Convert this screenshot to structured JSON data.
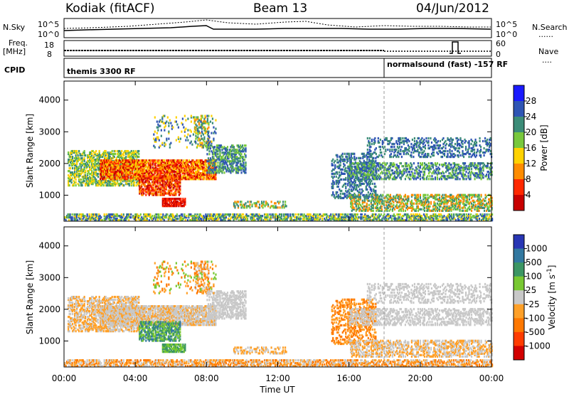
{
  "header": {
    "station": "Kodiak (fitACF)",
    "beam": "Beam 13",
    "date": "04/Jun/2012"
  },
  "side_labels": {
    "nsky": "N.Sky",
    "freq": "Freq.",
    "freq_unit": "[MHz]",
    "cpid": "CPID",
    "nsearch": "N.Search",
    "nave": "Nave",
    "dots": "......",
    "dots_short": "...."
  },
  "top_panel": {
    "left_ticks": [
      "10^5",
      "10^0"
    ],
    "right_ticks": [
      "10^5",
      "10^0"
    ]
  },
  "freq_panel": {
    "left_ticks": [
      "18",
      "8"
    ],
    "right_ticks": [
      "60",
      "0"
    ]
  },
  "cpid_panel": {
    "modes": [
      {
        "label": "themis 3300 RF",
        "start_hour": 0
      },
      {
        "label": "normalsound (fast)  -157 RF",
        "start_hour": 18
      }
    ]
  },
  "chart_data": [
    {
      "type": "heatmap",
      "title": "Power",
      "ylabel": "Slant Range [km]",
      "yticks": [
        1000,
        2000,
        3000,
        4000
      ],
      "ylim": [
        180,
        4600
      ],
      "xlim_hours": [
        0,
        24
      ],
      "colorbar": {
        "label": "Power [dB]",
        "ticks": [
          "4",
          "8",
          "12",
          "16",
          "20",
          "24",
          "28"
        ],
        "colors": [
          "#1a1aff",
          "#2f55b4",
          "#3c8c78",
          "#78c83c",
          "#ffd200",
          "#ff8c00",
          "#ff2800",
          "#c80000"
        ]
      }
    },
    {
      "type": "heatmap",
      "title": "Velocity",
      "ylabel": "Slant Range [km]",
      "yticks": [
        1000,
        2000,
        3000,
        4000
      ],
      "ylim": [
        180,
        4600
      ],
      "xlim_hours": [
        0,
        24
      ],
      "colorbar": {
        "label": "Velocity [m s",
        "label_sup": "-1",
        "label_end": "]",
        "ticks": [
          "1000",
          "500",
          "100",
          "25",
          "-25",
          "-100",
          "-500",
          "-1000"
        ],
        "colors": [
          "#2836b4",
          "#3278a0",
          "#3c9664",
          "#78c832",
          "#c8c8c8",
          "#ffa028",
          "#ff7800",
          "#ff3c00",
          "#d20000"
        ]
      }
    }
  ],
  "time_axis": {
    "label": "Time UT",
    "ticks": [
      "00:00",
      "04:00",
      "08:00",
      "12:00",
      "16:00",
      "20:00",
      "00:00"
    ]
  }
}
